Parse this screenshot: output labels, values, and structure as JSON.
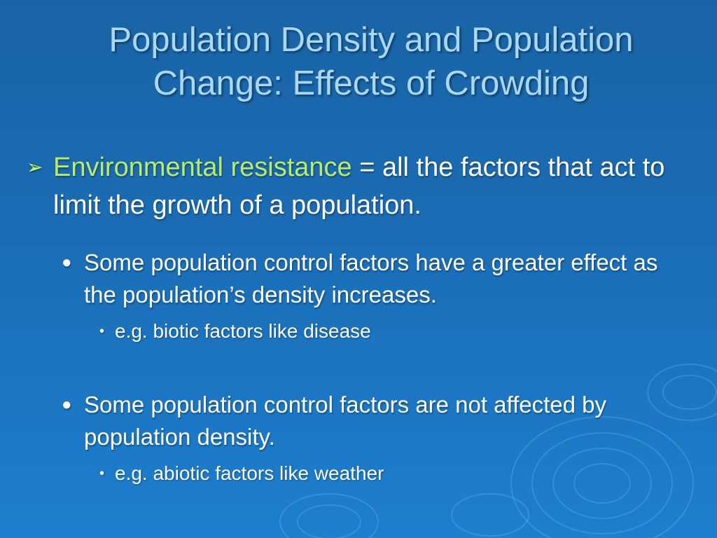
{
  "slide": {
    "title_line1": "Population Density and Population",
    "title_line2": "Change: Effects of Crowding",
    "point": {
      "term": "Environmental resistance",
      "equals": " = ",
      "definition": "all the factors that act to limit the growth of  a population."
    },
    "sub_points": [
      {
        "text": "Some population control factors have a greater effect as the population’s density increases.",
        "example": "e.g. biotic factors like disease"
      },
      {
        "text": "Some population control factors are not affected by population density.",
        "example": "e.g. abiotic factors like weather"
      }
    ],
    "colors": {
      "title": "#a9d8f5",
      "term": "#b8ec6a",
      "background": "#1b6db6"
    },
    "icons": {
      "main_bullet": "arrow-bullet-icon",
      "sub_bullet": "round-bullet-icon"
    }
  }
}
